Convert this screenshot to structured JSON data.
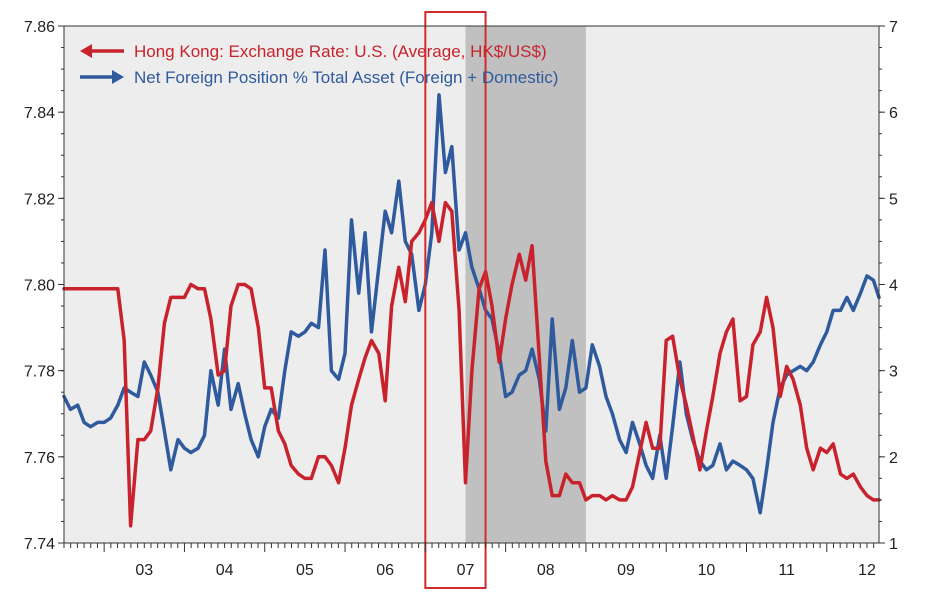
{
  "chart_data": {
    "type": "line",
    "title": "",
    "xlabel": "",
    "x_tick_labels": [
      "03",
      "04",
      "05",
      "06",
      "07",
      "08",
      "09",
      "10",
      "11",
      "12"
    ],
    "x_range": [
      2002.5,
      2012.65
    ],
    "y_left": {
      "range": [
        7.74,
        7.86
      ],
      "ticks": [
        "7.74",
        "7.76",
        "7.78",
        "7.80",
        "7.82",
        "7.84",
        "7.86"
      ]
    },
    "y_right": {
      "range": [
        1,
        7
      ],
      "ticks": [
        "1",
        "2",
        "3",
        "4",
        "5",
        "6",
        "7"
      ]
    },
    "grid": false,
    "legend_position": "top-left",
    "shaded_region": {
      "x_start": 2007.5,
      "x_end": 2009.0,
      "color": "#c0c0c0"
    },
    "highlight_box": {
      "x_start": 2007.0,
      "x_end": 2007.75,
      "color": "#d42a2a"
    },
    "series": [
      {
        "name": "Hong Kong: Exchange Rate: U.S. (Average, HK$/US$)",
        "axis": "left",
        "color": "#c8232c",
        "arrow": "left",
        "points": [
          [
            2002.5,
            7.799
          ],
          [
            2002.58,
            7.799
          ],
          [
            2002.67,
            7.799
          ],
          [
            2002.75,
            7.799
          ],
          [
            2002.83,
            7.799
          ],
          [
            2002.92,
            7.799
          ],
          [
            2003.0,
            7.799
          ],
          [
            2003.08,
            7.799
          ],
          [
            2003.17,
            7.799
          ],
          [
            2003.25,
            7.787
          ],
          [
            2003.33,
            7.744
          ],
          [
            2003.42,
            7.764
          ],
          [
            2003.5,
            7.764
          ],
          [
            2003.58,
            7.766
          ],
          [
            2003.67,
            7.776
          ],
          [
            2003.75,
            7.791
          ],
          [
            2003.83,
            7.797
          ],
          [
            2003.92,
            7.797
          ],
          [
            2004.0,
            7.797
          ],
          [
            2004.08,
            7.8
          ],
          [
            2004.17,
            7.799
          ],
          [
            2004.25,
            7.799
          ],
          [
            2004.33,
            7.792
          ],
          [
            2004.42,
            7.779
          ],
          [
            2004.5,
            7.78
          ],
          [
            2004.58,
            7.795
          ],
          [
            2004.67,
            7.8
          ],
          [
            2004.75,
            7.8
          ],
          [
            2004.83,
            7.799
          ],
          [
            2004.92,
            7.79
          ],
          [
            2005.0,
            7.776
          ],
          [
            2005.08,
            7.776
          ],
          [
            2005.17,
            7.766
          ],
          [
            2005.25,
            7.763
          ],
          [
            2005.33,
            7.758
          ],
          [
            2005.42,
            7.756
          ],
          [
            2005.5,
            7.755
          ],
          [
            2005.58,
            7.755
          ],
          [
            2005.67,
            7.76
          ],
          [
            2005.75,
            7.76
          ],
          [
            2005.83,
            7.758
          ],
          [
            2005.92,
            7.754
          ],
          [
            2006.0,
            7.762
          ],
          [
            2006.08,
            7.772
          ],
          [
            2006.17,
            7.778
          ],
          [
            2006.25,
            7.783
          ],
          [
            2006.33,
            7.787
          ],
          [
            2006.42,
            7.784
          ],
          [
            2006.5,
            7.773
          ],
          [
            2006.58,
            7.795
          ],
          [
            2006.67,
            7.804
          ],
          [
            2006.75,
            7.796
          ],
          [
            2006.83,
            7.81
          ],
          [
            2006.92,
            7.812
          ],
          [
            2007.0,
            7.815
          ],
          [
            2007.08,
            7.819
          ],
          [
            2007.17,
            7.81
          ],
          [
            2007.25,
            7.819
          ],
          [
            2007.33,
            7.817
          ],
          [
            2007.42,
            7.794
          ],
          [
            2007.5,
            7.754
          ],
          [
            2007.58,
            7.78
          ],
          [
            2007.67,
            7.799
          ],
          [
            2007.75,
            7.803
          ],
          [
            2007.83,
            7.795
          ],
          [
            2007.92,
            7.782
          ],
          [
            2008.0,
            7.792
          ],
          [
            2008.08,
            7.8
          ],
          [
            2008.17,
            7.807
          ],
          [
            2008.25,
            7.801
          ],
          [
            2008.33,
            7.809
          ],
          [
            2008.42,
            7.783
          ],
          [
            2008.5,
            7.759
          ],
          [
            2008.58,
            7.751
          ],
          [
            2008.67,
            7.751
          ],
          [
            2008.75,
            7.756
          ],
          [
            2008.83,
            7.754
          ],
          [
            2008.92,
            7.754
          ],
          [
            2009.0,
            7.75
          ],
          [
            2009.08,
            7.751
          ],
          [
            2009.17,
            7.751
          ],
          [
            2009.25,
            7.75
          ],
          [
            2009.33,
            7.751
          ],
          [
            2009.42,
            7.75
          ],
          [
            2009.5,
            7.75
          ],
          [
            2009.58,
            7.753
          ],
          [
            2009.67,
            7.761
          ],
          [
            2009.75,
            7.768
          ],
          [
            2009.83,
            7.762
          ],
          [
            2009.92,
            7.762
          ],
          [
            2010.0,
            7.787
          ],
          [
            2010.08,
            7.788
          ],
          [
            2010.17,
            7.778
          ],
          [
            2010.25,
            7.772
          ],
          [
            2010.33,
            7.765
          ],
          [
            2010.42,
            7.757
          ],
          [
            2010.5,
            7.766
          ],
          [
            2010.58,
            7.774
          ],
          [
            2010.67,
            7.784
          ],
          [
            2010.75,
            7.789
          ],
          [
            2010.83,
            7.792
          ],
          [
            2010.92,
            7.773
          ],
          [
            2011.0,
            7.774
          ],
          [
            2011.08,
            7.786
          ],
          [
            2011.17,
            7.789
          ],
          [
            2011.25,
            7.797
          ],
          [
            2011.33,
            7.79
          ],
          [
            2011.42,
            7.774
          ],
          [
            2011.5,
            7.781
          ],
          [
            2011.58,
            7.778
          ],
          [
            2011.67,
            7.772
          ],
          [
            2011.75,
            7.762
          ],
          [
            2011.83,
            7.757
          ],
          [
            2011.92,
            7.762
          ],
          [
            2012.0,
            7.761
          ],
          [
            2012.08,
            7.763
          ],
          [
            2012.17,
            7.756
          ],
          [
            2012.25,
            7.755
          ],
          [
            2012.33,
            7.756
          ],
          [
            2012.42,
            7.753
          ],
          [
            2012.5,
            7.751
          ],
          [
            2012.58,
            7.75
          ],
          [
            2012.65,
            7.75
          ]
        ]
      },
      {
        "name": "Net Foreign Position % Total Asset (Foreign + Domestic)",
        "axis": "right",
        "color": "#2f5a9e",
        "arrow": "right",
        "points": [
          [
            2002.5,
            2.7
          ],
          [
            2002.58,
            2.55
          ],
          [
            2002.67,
            2.6
          ],
          [
            2002.75,
            2.4
          ],
          [
            2002.83,
            2.35
          ],
          [
            2002.92,
            2.4
          ],
          [
            2003.0,
            2.4
          ],
          [
            2003.08,
            2.45
          ],
          [
            2003.17,
            2.6
          ],
          [
            2003.25,
            2.8
          ],
          [
            2003.33,
            2.75
          ],
          [
            2003.42,
            2.7
          ],
          [
            2003.5,
            3.1
          ],
          [
            2003.58,
            2.95
          ],
          [
            2003.67,
            2.75
          ],
          [
            2003.75,
            2.3
          ],
          [
            2003.83,
            1.85
          ],
          [
            2003.92,
            2.2
          ],
          [
            2004.0,
            2.1
          ],
          [
            2004.08,
            2.05
          ],
          [
            2004.17,
            2.1
          ],
          [
            2004.25,
            2.25
          ],
          [
            2004.33,
            3.0
          ],
          [
            2004.42,
            2.6
          ],
          [
            2004.5,
            3.25
          ],
          [
            2004.58,
            2.55
          ],
          [
            2004.67,
            2.85
          ],
          [
            2004.75,
            2.5
          ],
          [
            2004.83,
            2.2
          ],
          [
            2004.92,
            2.0
          ],
          [
            2005.0,
            2.35
          ],
          [
            2005.08,
            2.55
          ],
          [
            2005.17,
            2.45
          ],
          [
            2005.25,
            3.0
          ],
          [
            2005.33,
            3.45
          ],
          [
            2005.42,
            3.4
          ],
          [
            2005.5,
            3.45
          ],
          [
            2005.58,
            3.55
          ],
          [
            2005.67,
            3.5
          ],
          [
            2005.75,
            4.4
          ],
          [
            2005.83,
            3.0
          ],
          [
            2005.92,
            2.9
          ],
          [
            2006.0,
            3.2
          ],
          [
            2006.08,
            4.75
          ],
          [
            2006.17,
            3.9
          ],
          [
            2006.25,
            4.6
          ],
          [
            2006.33,
            3.45
          ],
          [
            2006.42,
            4.2
          ],
          [
            2006.5,
            4.85
          ],
          [
            2006.58,
            4.6
          ],
          [
            2006.67,
            5.2
          ],
          [
            2006.75,
            4.5
          ],
          [
            2006.83,
            4.35
          ],
          [
            2006.92,
            3.7
          ],
          [
            2007.0,
            4.0
          ],
          [
            2007.08,
            4.6
          ],
          [
            2007.17,
            6.2
          ],
          [
            2007.25,
            5.3
          ],
          [
            2007.33,
            5.6
          ],
          [
            2007.42,
            4.4
          ],
          [
            2007.5,
            4.6
          ],
          [
            2007.58,
            4.2
          ],
          [
            2007.67,
            3.95
          ],
          [
            2007.75,
            3.7
          ],
          [
            2007.83,
            3.6
          ],
          [
            2007.92,
            3.2
          ],
          [
            2008.0,
            2.7
          ],
          [
            2008.08,
            2.75
          ],
          [
            2008.17,
            2.95
          ],
          [
            2008.25,
            3.0
          ],
          [
            2008.33,
            3.25
          ],
          [
            2008.42,
            2.9
          ],
          [
            2008.5,
            2.3
          ],
          [
            2008.58,
            3.6
          ],
          [
            2008.67,
            2.55
          ],
          [
            2008.75,
            2.8
          ],
          [
            2008.83,
            3.35
          ],
          [
            2008.92,
            2.75
          ],
          [
            2009.0,
            2.8
          ],
          [
            2009.08,
            3.3
          ],
          [
            2009.17,
            3.05
          ],
          [
            2009.25,
            2.7
          ],
          [
            2009.33,
            2.5
          ],
          [
            2009.42,
            2.2
          ],
          [
            2009.5,
            2.05
          ],
          [
            2009.58,
            2.4
          ],
          [
            2009.67,
            2.15
          ],
          [
            2009.75,
            1.9
          ],
          [
            2009.83,
            1.75
          ],
          [
            2009.92,
            2.25
          ],
          [
            2010.0,
            1.75
          ],
          [
            2010.08,
            2.35
          ],
          [
            2010.17,
            3.1
          ],
          [
            2010.25,
            2.5
          ],
          [
            2010.33,
            2.2
          ],
          [
            2010.42,
            1.95
          ],
          [
            2010.5,
            1.85
          ],
          [
            2010.58,
            1.9
          ],
          [
            2010.67,
            2.15
          ],
          [
            2010.75,
            1.85
          ],
          [
            2010.83,
            1.95
          ],
          [
            2010.92,
            1.9
          ],
          [
            2011.0,
            1.85
          ],
          [
            2011.08,
            1.75
          ],
          [
            2011.17,
            1.35
          ],
          [
            2011.25,
            1.85
          ],
          [
            2011.33,
            2.4
          ],
          [
            2011.42,
            2.8
          ],
          [
            2011.5,
            2.95
          ],
          [
            2011.58,
            3.0
          ],
          [
            2011.67,
            3.05
          ],
          [
            2011.75,
            3.0
          ],
          [
            2011.83,
            3.1
          ],
          [
            2011.92,
            3.3
          ],
          [
            2012.0,
            3.45
          ],
          [
            2012.08,
            3.7
          ],
          [
            2012.17,
            3.7
          ],
          [
            2012.25,
            3.85
          ],
          [
            2012.33,
            3.7
          ],
          [
            2012.42,
            3.9
          ],
          [
            2012.5,
            4.1
          ],
          [
            2012.58,
            4.05
          ],
          [
            2012.65,
            3.85
          ]
        ]
      }
    ]
  }
}
